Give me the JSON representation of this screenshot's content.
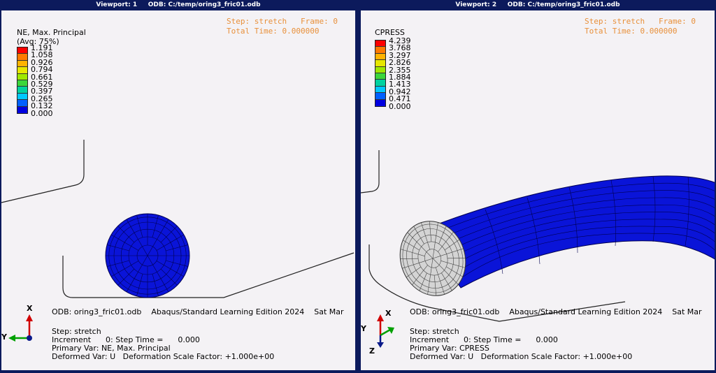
{
  "viewport1": {
    "title": "Viewport: 1     ODB: C:/temp/oring3_fric01.odb",
    "step_line": "Step: stretch   Frame: 0",
    "time_line": "Total Time: 0.000000",
    "legend": {
      "title_line1": "NE, Max. Principal",
      "title_line2": "(Avg: 75%)",
      "values": [
        "1.191",
        "1.058",
        "0.926",
        "0.794",
        "0.661",
        "0.529",
        "0.397",
        "0.265",
        "0.132",
        "0.000"
      ],
      "colors": [
        "#ff0000",
        "#ff7a00",
        "#ffb300",
        "#e7e700",
        "#9fe800",
        "#3bd63b",
        "#00d2a0",
        "#00c8ff",
        "#0060ff",
        "#0000e0"
      ]
    },
    "odb_line": "ODB: oring3_fric01.odb    Abaqus/Standard Learning Edition 2024    Sat Mar",
    "info_step": "Step: stretch",
    "info_increment": "Increment      0: Step Time =      0.000",
    "info_primary": "Primary Var: NE, Max. Principal",
    "info_deformed": "Deformed Var: U   Deformation Scale Factor: +1.000e+00",
    "triad": {
      "x_label": "X",
      "y_label": "Y"
    }
  },
  "viewport2": {
    "title": "Viewport: 2     ODB: C:/temp/oring3_fric01.odb",
    "step_line": "Step: stretch   Frame: 0",
    "time_line": "Total Time: 0.000000",
    "legend": {
      "title_line1": "CPRESS",
      "values": [
        "4.239",
        "3.768",
        "3.297",
        "2.826",
        "2.355",
        "1.884",
        "1.413",
        "0.942",
        "0.471",
        "0.000"
      ],
      "colors": [
        "#ff0000",
        "#ff7a00",
        "#ffb300",
        "#e7e700",
        "#9fe800",
        "#3bd63b",
        "#00d2a0",
        "#00c8ff",
        "#0060ff",
        "#0000e0"
      ]
    },
    "odb_line": "ODB: oring3_fric01.odb    Abaqus/Standard Learning Edition 2024    Sat Mar",
    "info_step": "Step: stretch",
    "info_increment": "Increment      0: Step Time =      0.000",
    "info_primary": "Primary Var: CPRESS",
    "info_deformed": "Deformed Var: U   Deformation Scale Factor: +1.000e+00",
    "triad": {
      "x_label": "X",
      "y_label": "Y",
      "z_label": "Z"
    }
  },
  "colors": {
    "mesh_blue": "#0a14d8",
    "mesh_line": "#000050",
    "section_gray": "#d4d4d4",
    "step_text": "#e8903a",
    "frame": "#0c1a5c"
  }
}
